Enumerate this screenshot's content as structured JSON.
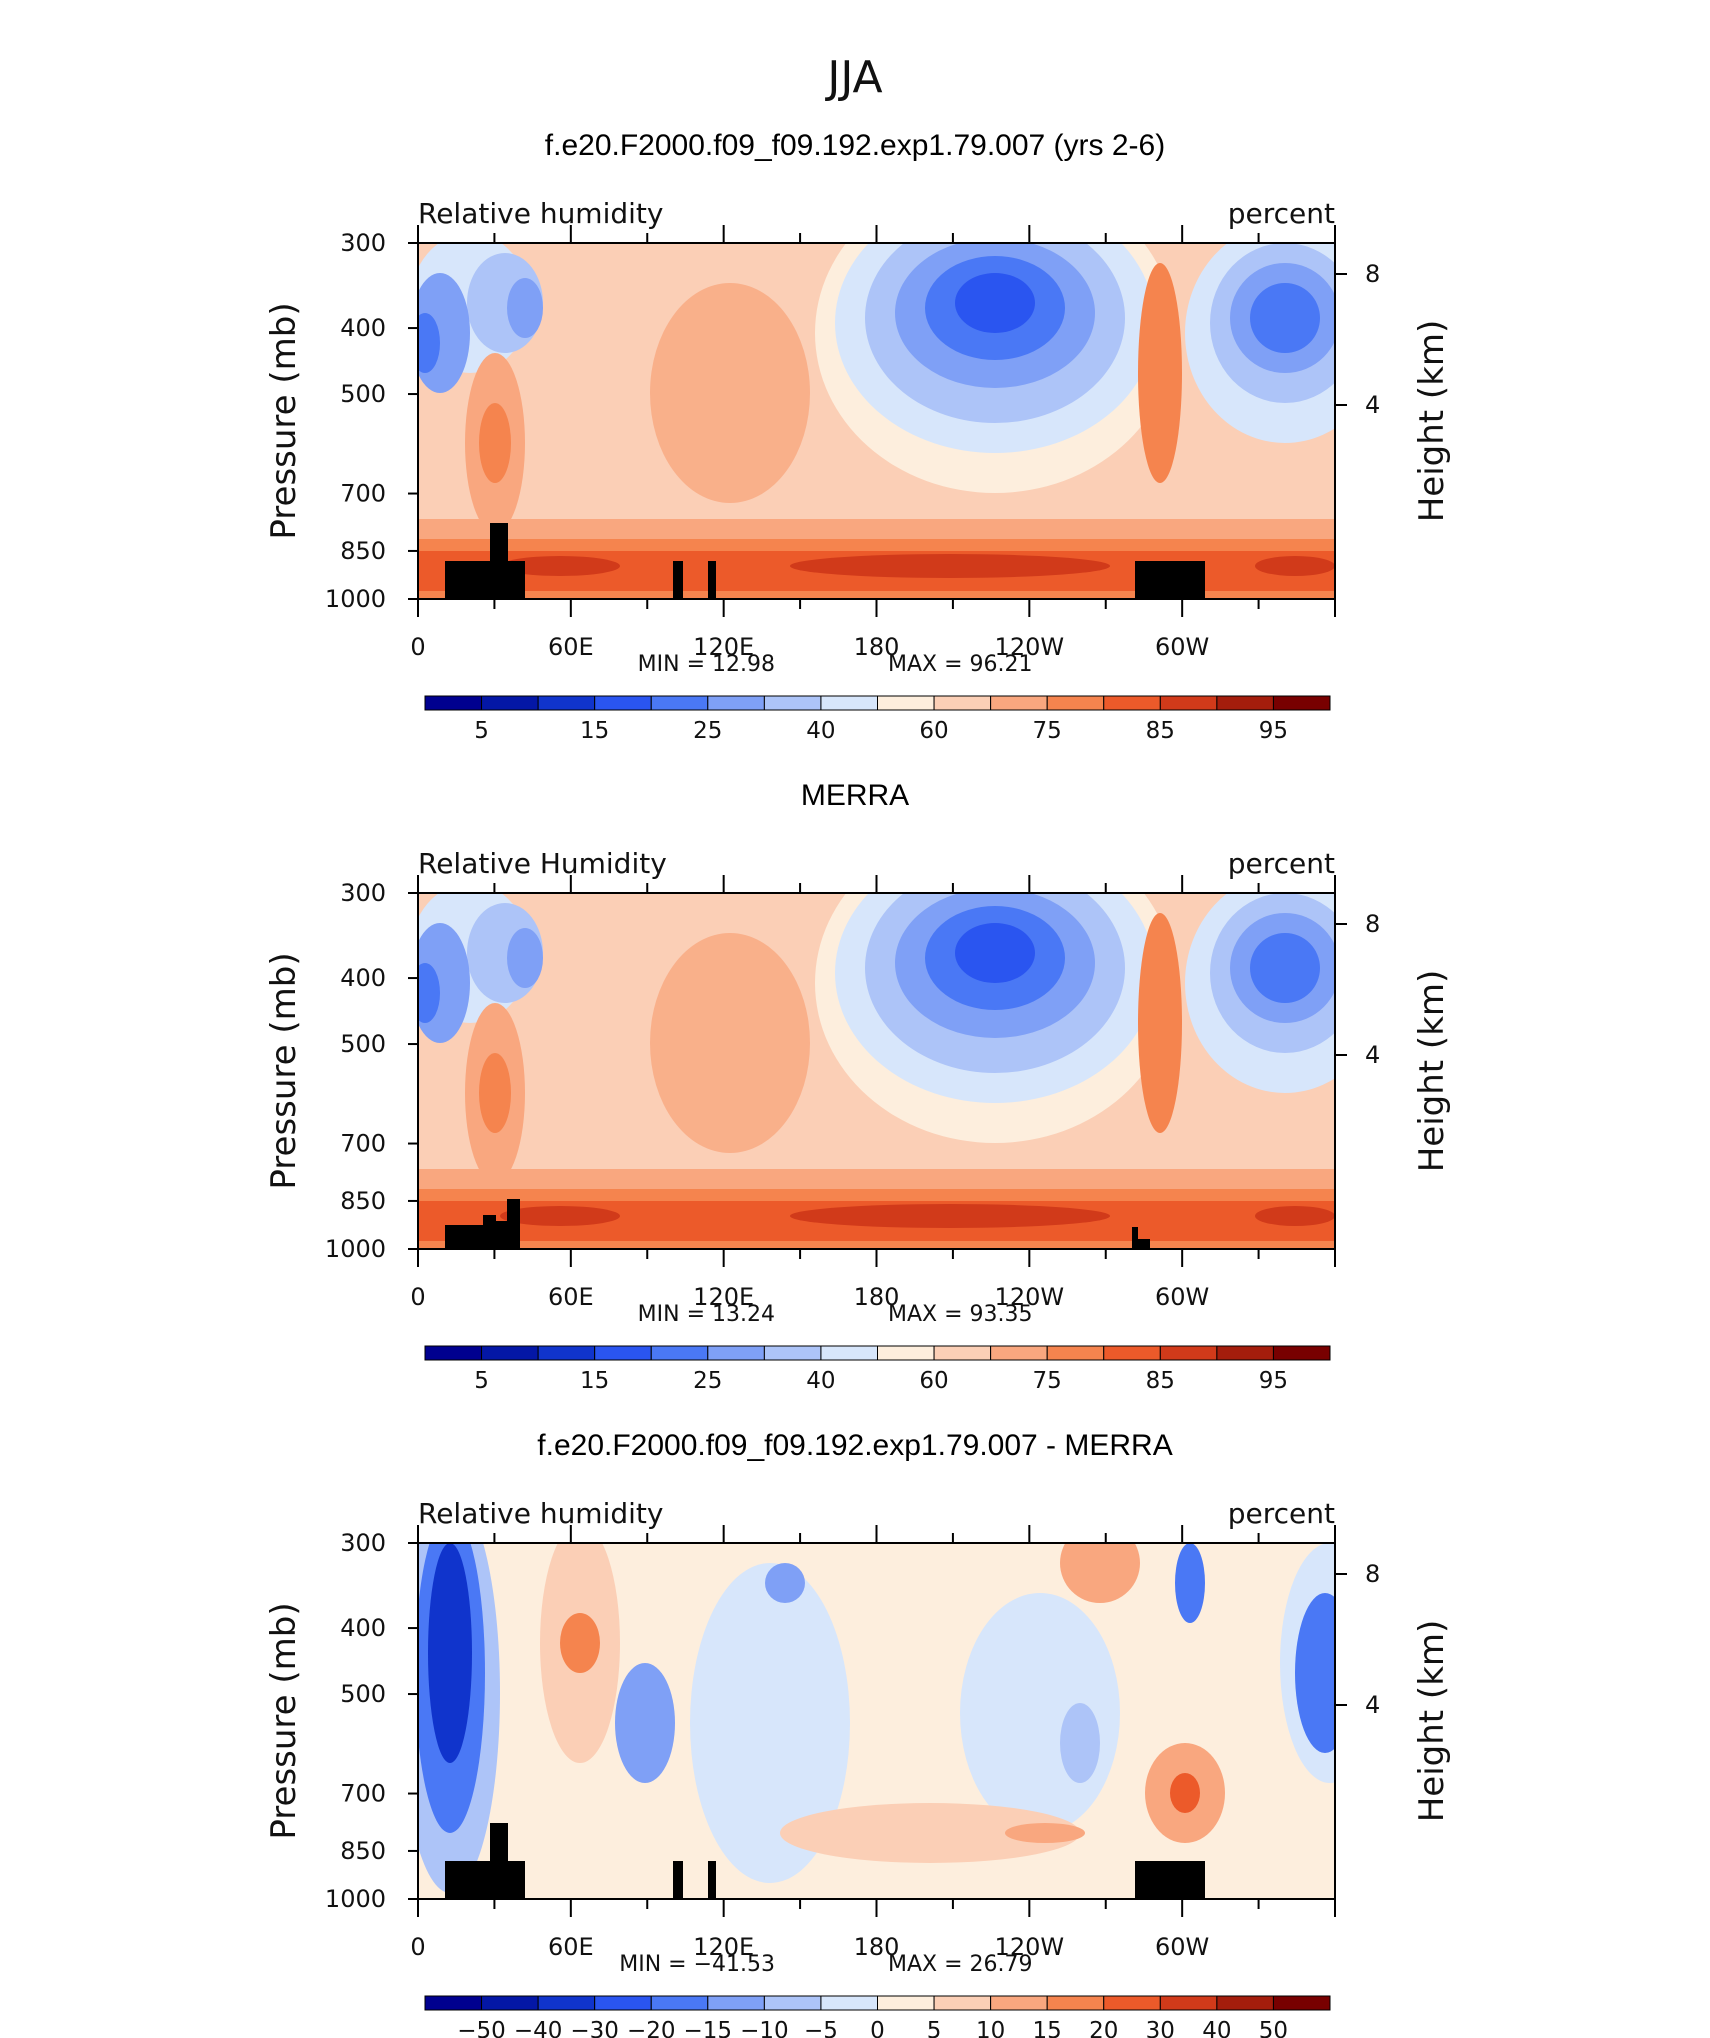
{
  "page_title": "JJA",
  "colorbar_fill": {
    "full": [
      "#00008f",
      "#0417a6",
      "#1034cc",
      "#2a55f0",
      "#4a78f5",
      "#7fa0f6",
      "#adc4f8",
      "#d7e6fb",
      "#fdeedd",
      "#fbcfb6",
      "#f9a77f",
      "#f5844e",
      "#ec5a2a",
      "#d13a1a",
      "#a41d0c",
      "#780000"
    ],
    "diff": [
      "#00008f",
      "#0417a6",
      "#1034cc",
      "#2a55f0",
      "#4a78f5",
      "#7fa0f6",
      "#adc4f8",
      "#d7e6fb",
      "#fdeedd",
      "#fbcfb6",
      "#f9a77f",
      "#f5844e",
      "#ec5a2a",
      "#d13a1a",
      "#a41d0c",
      "#780000"
    ]
  },
  "panels": [
    {
      "title": "f.e20.F2000.f09_f09.192.exp1.79.007 (yrs 2-6)",
      "variable": "Relative humidity",
      "units": "percent",
      "min_label": "MIN =   12.98",
      "max_label": "MAX =   96.21",
      "colorbar_labels": [
        "5",
        "15",
        "25",
        "40",
        "60",
        "75",
        "85",
        "95"
      ],
      "palette": "full"
    },
    {
      "title": "MERRA",
      "variable": "Relative Humidity",
      "units": "percent",
      "min_label": "MIN =   13.24",
      "max_label": "MAX =   93.35",
      "colorbar_labels": [
        "5",
        "15",
        "25",
        "40",
        "60",
        "75",
        "85",
        "95"
      ],
      "palette": "full"
    },
    {
      "title": "f.e20.F2000.f09_f09.192.exp1.79.007 - MERRA",
      "variable": "Relative humidity",
      "units": "percent",
      "min_label": "MIN = −41.53",
      "max_label": "MAX =   26.79",
      "colorbar_labels": [
        "−50",
        "−40",
        "−30",
        "−20",
        "−15",
        "−10",
        "−5",
        "0",
        "5",
        "10",
        "15",
        "20",
        "30",
        "40",
        "50"
      ],
      "palette": "diff"
    }
  ],
  "chart_data": {
    "type": "heatmap",
    "title": "JJA",
    "xlabel": "",
    "x_tick_labels": [
      "0",
      "60E",
      "120E",
      "180",
      "120W",
      "60W"
    ],
    "x_range_deg_east": [
      0,
      360
    ],
    "ylabel_left": "Pressure (mb)",
    "y_tick_labels_left": [
      "300",
      "400",
      "500",
      "700",
      "850",
      "1000"
    ],
    "ylim_mb": [
      1000,
      300
    ],
    "y_scale": "log",
    "ylabel_right": "Height (km)",
    "y_tick_labels_right": [
      "8",
      "4"
    ],
    "panels": [
      {
        "name": "f.e20.F2000.f09_f09.192.exp1.79.007 (yrs 2-6)",
        "min": 12.98,
        "max": 96.21,
        "levels": [
          5,
          10,
          15,
          20,
          25,
          30,
          40,
          50,
          60,
          70,
          75,
          80,
          85,
          90,
          95
        ]
      },
      {
        "name": "MERRA",
        "min": 13.24,
        "max": 93.35,
        "levels": [
          5,
          10,
          15,
          20,
          25,
          30,
          40,
          50,
          60,
          70,
          75,
          80,
          85,
          90,
          95
        ]
      },
      {
        "name": "f.e20.F2000.f09_f09.192.exp1.79.007 - MERRA",
        "min": -41.53,
        "max": 26.79,
        "levels": [
          -50,
          -40,
          -30,
          -20,
          -15,
          -10,
          -5,
          0,
          5,
          10,
          15,
          20,
          30,
          40,
          50
        ]
      }
    ]
  }
}
